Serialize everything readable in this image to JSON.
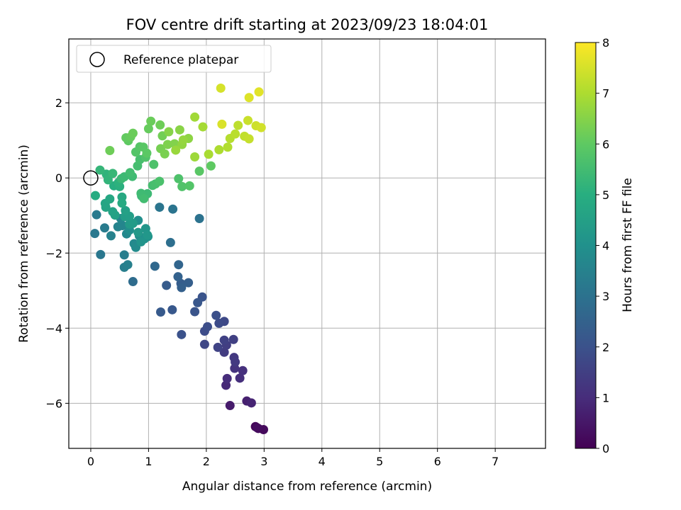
{
  "chart_data": {
    "type": "scatter",
    "title": "FOV centre drift starting at 2023/09/23 18:04:01",
    "xlabel": "Angular distance from reference (arcmin)",
    "ylabel": "Rotation from reference (arcmin)",
    "xlim": [
      -0.38,
      7.87
    ],
    "ylim": [
      -7.2,
      3.7
    ],
    "xticks": [
      0,
      1,
      2,
      3,
      4,
      5,
      6,
      7
    ],
    "yticks": [
      -6,
      -4,
      -2,
      0,
      2
    ],
    "grid": true,
    "legend": {
      "position": "top-left",
      "label": "Reference platepar"
    },
    "reference": {
      "x": 0,
      "y": 0
    },
    "colorbar": {
      "label": "Hours from first FF file",
      "range": [
        0,
        8
      ],
      "ticks": [
        0,
        1,
        2,
        3,
        4,
        5,
        6,
        7,
        8
      ],
      "colormap": "viridis"
    },
    "points": [
      [
        2.85,
        -6.62,
        0.1
      ],
      [
        2.9,
        -6.67,
        0.15
      ],
      [
        2.99,
        -6.7,
        0.2
      ],
      [
        2.88,
        -6.65,
        0.25
      ],
      [
        2.41,
        -6.06,
        0.6
      ],
      [
        2.7,
        -5.94,
        0.7
      ],
      [
        2.78,
        -5.99,
        0.8
      ],
      [
        2.34,
        -5.52,
        0.9
      ],
      [
        2.36,
        -5.34,
        1.0
      ],
      [
        2.58,
        -5.33,
        1.05
      ],
      [
        2.63,
        -5.13,
        1.1
      ],
      [
        2.49,
        -5.07,
        1.2
      ],
      [
        2.48,
        -4.78,
        1.3
      ],
      [
        2.5,
        -4.9,
        1.35
      ],
      [
        2.31,
        -4.64,
        1.4
      ],
      [
        2.35,
        -4.45,
        1.45
      ],
      [
        2.47,
        -4.3,
        1.5
      ],
      [
        2.31,
        -4.32,
        1.55
      ],
      [
        2.2,
        -4.51,
        1.6
      ],
      [
        1.97,
        -4.43,
        1.7
      ],
      [
        2.31,
        -3.82,
        1.75
      ],
      [
        2.22,
        -3.87,
        1.8
      ],
      [
        1.97,
        -4.08,
        1.85
      ],
      [
        2.02,
        -3.96,
        1.9
      ],
      [
        2.17,
        -3.66,
        1.95
      ],
      [
        1.57,
        -4.17,
        2.0
      ],
      [
        1.93,
        -3.17,
        2.05
      ],
      [
        1.8,
        -3.56,
        2.1
      ],
      [
        1.85,
        -3.32,
        2.15
      ],
      [
        1.41,
        -3.51,
        2.2
      ],
      [
        1.21,
        -3.57,
        2.25
      ],
      [
        1.31,
        -2.86,
        2.3
      ],
      [
        1.56,
        -2.81,
        2.35
      ],
      [
        1.69,
        -2.79,
        2.4
      ],
      [
        1.57,
        -2.92,
        2.45
      ],
      [
        1.51,
        -2.63,
        2.5
      ],
      [
        1.52,
        -2.31,
        2.6
      ],
      [
        1.11,
        -2.35,
        2.7
      ],
      [
        0.73,
        -2.76,
        2.8
      ],
      [
        1.38,
        -1.72,
        2.9
      ],
      [
        1.88,
        -1.08,
        3.0
      ],
      [
        1.42,
        -0.83,
        3.05
      ],
      [
        1.19,
        -0.78,
        3.1
      ],
      [
        0.17,
        -2.04,
        3.15
      ],
      [
        0.07,
        -1.48,
        3.2
      ],
      [
        0.1,
        -0.98,
        3.25
      ],
      [
        0.24,
        -1.33,
        3.3
      ],
      [
        0.58,
        -2.05,
        3.35
      ],
      [
        0.58,
        -2.38,
        3.4
      ],
      [
        0.64,
        -2.31,
        3.45
      ],
      [
        0.35,
        -1.54,
        3.5
      ],
      [
        0.47,
        -1.3,
        3.55
      ],
      [
        0.55,
        -1.27,
        3.6
      ],
      [
        0.52,
        -1.08,
        3.65
      ],
      [
        0.62,
        -1.49,
        3.7
      ],
      [
        0.75,
        -1.75,
        3.75
      ],
      [
        0.78,
        -1.85,
        3.8
      ],
      [
        0.84,
        -1.54,
        3.85
      ],
      [
        0.67,
        -1.39,
        3.9
      ],
      [
        0.82,
        -1.13,
        3.95
      ],
      [
        0.93,
        -1.62,
        4.0
      ],
      [
        0.99,
        -1.56,
        4.05
      ],
      [
        0.87,
        -1.7,
        4.1
      ],
      [
        0.95,
        -1.35,
        4.15
      ],
      [
        0.98,
        -1.52,
        4.2
      ],
      [
        0.82,
        -1.45,
        4.25
      ],
      [
        0.67,
        -1.23,
        4.3
      ],
      [
        0.73,
        -1.21,
        4.35
      ],
      [
        0.59,
        -1.03,
        4.4
      ],
      [
        0.67,
        -1.02,
        4.45
      ],
      [
        0.6,
        -0.87,
        4.5
      ],
      [
        0.42,
        -0.99,
        4.55
      ],
      [
        0.38,
        -0.9,
        4.6
      ],
      [
        0.26,
        -0.78,
        4.65
      ],
      [
        0.25,
        -0.68,
        4.7
      ],
      [
        0.33,
        -0.56,
        4.75
      ],
      [
        0.54,
        -0.51,
        4.8
      ],
      [
        0.54,
        -0.67,
        4.85
      ],
      [
        0.08,
        -0.47,
        4.9
      ],
      [
        0.4,
        -0.21,
        5.0
      ],
      [
        0.5,
        -0.23,
        5.05
      ],
      [
        0.48,
        -0.12,
        5.1
      ],
      [
        0.27,
        0.1,
        5.15
      ],
      [
        0.3,
        -0.05,
        5.2
      ],
      [
        0.16,
        0.21,
        5.25
      ],
      [
        0.38,
        0.12,
        5.3
      ],
      [
        0.53,
        -0.02,
        5.35
      ],
      [
        0.58,
        0.03,
        5.4
      ],
      [
        0.72,
        0.04,
        5.45
      ],
      [
        0.68,
        0.14,
        5.5
      ],
      [
        0.81,
        0.32,
        5.55
      ],
      [
        0.85,
        0.49,
        5.6
      ],
      [
        0.88,
        -0.48,
        5.35
      ],
      [
        0.98,
        -0.42,
        5.4
      ],
      [
        0.87,
        -0.41,
        5.45
      ],
      [
        0.92,
        -0.55,
        5.5
      ],
      [
        1.07,
        -0.2,
        5.55
      ],
      [
        1.12,
        -0.16,
        5.6
      ],
      [
        1.19,
        -0.09,
        5.65
      ],
      [
        1.52,
        -0.02,
        5.7
      ],
      [
        1.58,
        -0.23,
        5.75
      ],
      [
        1.71,
        -0.21,
        5.8
      ],
      [
        1.88,
        0.18,
        5.9
      ],
      [
        2.08,
        0.32,
        6.0
      ],
      [
        1.09,
        0.36,
        5.7
      ],
      [
        0.95,
        0.55,
        5.75
      ],
      [
        0.78,
        0.69,
        5.8
      ],
      [
        0.85,
        0.83,
        5.85
      ],
      [
        0.91,
        0.82,
        5.9
      ],
      [
        0.97,
        0.66,
        5.95
      ],
      [
        0.65,
        0.99,
        6.0
      ],
      [
        0.61,
        1.07,
        6.05
      ],
      [
        0.69,
        1.09,
        6.1
      ],
      [
        0.73,
        1.19,
        6.15
      ],
      [
        0.33,
        0.73,
        6.2
      ],
      [
        1.0,
        1.31,
        6.1
      ],
      [
        1.04,
        1.51,
        6.15
      ],
      [
        1.2,
        1.41,
        6.2
      ],
      [
        1.24,
        1.12,
        6.25
      ],
      [
        1.21,
        0.78,
        6.3
      ],
      [
        1.28,
        0.64,
        6.35
      ],
      [
        1.33,
        0.89,
        6.4
      ],
      [
        1.45,
        0.91,
        6.45
      ],
      [
        1.35,
        1.23,
        6.5
      ],
      [
        1.54,
        1.28,
        6.55
      ],
      [
        1.69,
        1.05,
        6.6
      ],
      [
        1.58,
        0.89,
        6.65
      ],
      [
        1.6,
        1.01,
        6.7
      ],
      [
        1.47,
        0.74,
        6.75
      ],
      [
        1.8,
        0.56,
        6.8
      ],
      [
        1.8,
        1.62,
        6.85
      ],
      [
        1.94,
        1.36,
        6.9
      ],
      [
        2.04,
        0.63,
        6.95
      ],
      [
        2.22,
        0.75,
        7.0
      ],
      [
        2.37,
        0.82,
        7.05
      ],
      [
        2.41,
        1.05,
        7.1
      ],
      [
        2.5,
        1.17,
        7.15
      ],
      [
        2.55,
        1.4,
        7.2
      ],
      [
        2.66,
        1.11,
        7.25
      ],
      [
        2.74,
        1.04,
        7.3
      ],
      [
        2.72,
        1.53,
        7.35
      ],
      [
        2.86,
        1.39,
        7.4
      ],
      [
        2.95,
        1.34,
        7.45
      ],
      [
        2.25,
        2.39,
        7.5
      ],
      [
        2.27,
        1.43,
        7.55
      ],
      [
        2.74,
        2.14,
        7.6
      ],
      [
        2.91,
        2.29,
        7.65
      ]
    ]
  }
}
